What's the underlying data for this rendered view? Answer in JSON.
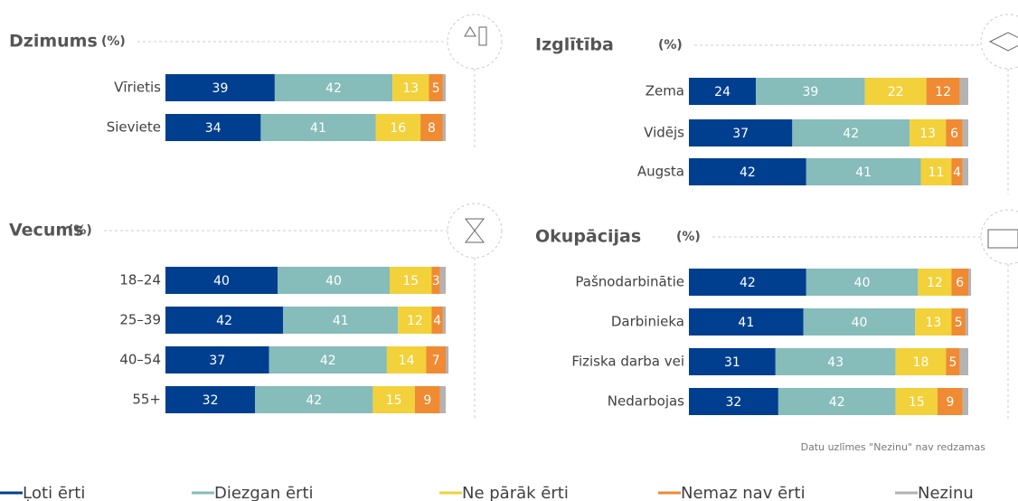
{
  "note": "Datu uzlīmes \"Nezinu\" nav redzamas",
  "chart_data": [
    {
      "type": "bar",
      "orientation": "horizontal",
      "stacked": true,
      "title": "Dzimums",
      "subtitle": "(%)",
      "xlim": [
        0,
        100
      ],
      "categories": [
        "Vīrietis",
        "Sieviete"
      ],
      "series": [
        {
          "name": "Ļoti ērti",
          "color": "#003f8f",
          "values": [
            39,
            34
          ]
        },
        {
          "name": "Diezgan ērti",
          "color": "#86bcba",
          "values": [
            42,
            41
          ]
        },
        {
          "name": "Ne pārāk ērti",
          "color": "#f2d13a",
          "values": [
            13,
            16
          ]
        },
        {
          "name": "Nemaz nav ērti",
          "color": "#f08a33",
          "values": [
            5,
            8
          ]
        },
        {
          "name": "Nezinu",
          "color": "#b3b3b3",
          "values": [
            1,
            1
          ],
          "show_labels": false
        }
      ]
    },
    {
      "type": "bar",
      "orientation": "horizontal",
      "stacked": true,
      "title": "Izglītība",
      "subtitle": "(%)",
      "xlim": [
        0,
        100
      ],
      "categories": [
        "Zema",
        "Vidējs",
        "Augsta"
      ],
      "series": [
        {
          "name": "Ļoti ērti",
          "color": "#003f8f",
          "values": [
            24,
            37,
            42
          ]
        },
        {
          "name": "Diezgan ērti",
          "color": "#86bcba",
          "values": [
            39,
            42,
            41
          ]
        },
        {
          "name": "Ne pārāk ērti",
          "color": "#f2d13a",
          "values": [
            22,
            13,
            11
          ]
        },
        {
          "name": "Nemaz nav ērti",
          "color": "#f08a33",
          "values": [
            12,
            6,
            4
          ]
        },
        {
          "name": "Nezinu",
          "color": "#b3b3b3",
          "values": [
            3,
            2,
            2
          ],
          "show_labels": false
        }
      ]
    },
    {
      "type": "bar",
      "orientation": "horizontal",
      "stacked": true,
      "title": "Vecums",
      "subtitle": "(%)",
      "xlim": [
        0,
        100
      ],
      "categories": [
        "18–24",
        "25–39",
        "40–54",
        "55+"
      ],
      "series": [
        {
          "name": "Ļoti ērti",
          "color": "#003f8f",
          "values": [
            40,
            42,
            37,
            32
          ]
        },
        {
          "name": "Diezgan ērti",
          "color": "#86bcba",
          "values": [
            40,
            41,
            42,
            42
          ]
        },
        {
          "name": "Ne pārāk ērti",
          "color": "#f2d13a",
          "values": [
            15,
            12,
            14,
            15
          ]
        },
        {
          "name": "Nemaz nav ērti",
          "color": "#f08a33",
          "values": [
            3,
            4,
            7,
            9
          ]
        },
        {
          "name": "Nezinu",
          "color": "#b3b3b3",
          "values": [
            2,
            1,
            1,
            2
          ],
          "show_labels": false
        }
      ]
    },
    {
      "type": "bar",
      "orientation": "horizontal",
      "stacked": true,
      "title": "Okupācijas",
      "subtitle": "(%)",
      "xlim": [
        0,
        100
      ],
      "categories": [
        "Pašnodarbinātie",
        "Darbinieka",
        "Fiziska darba vei",
        "Nedarbojas"
      ],
      "series": [
        {
          "name": "Ļoti ērti",
          "color": "#003f8f",
          "values": [
            42,
            41,
            31,
            32
          ]
        },
        {
          "name": "Diezgan ērti",
          "color": "#86bcba",
          "values": [
            40,
            40,
            43,
            42
          ]
        },
        {
          "name": "Ne pārāk ērti",
          "color": "#f2d13a",
          "values": [
            12,
            13,
            18,
            15
          ]
        },
        {
          "name": "Nemaz nav ērti",
          "color": "#f08a33",
          "values": [
            6,
            5,
            5,
            9
          ]
        },
        {
          "name": "Nezinu",
          "color": "#b3b3b3",
          "values": [
            1,
            1,
            3,
            2
          ],
          "show_labels": false
        }
      ]
    }
  ]
}
